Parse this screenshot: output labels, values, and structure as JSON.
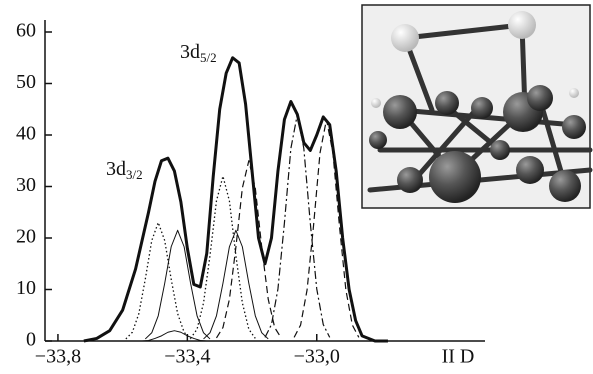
{
  "chart_data": {
    "type": "line",
    "x_label": "II D",
    "xlim": [
      -33.84,
      -32.48
    ],
    "ylim": [
      0,
      62
    ],
    "xticks": [
      {
        "value": -33.8,
        "label": "−33,8"
      },
      {
        "value": -33.4,
        "label": "−33,4"
      },
      {
        "value": -33.0,
        "label": "−33,0"
      }
    ],
    "yticks": [
      0,
      10,
      20,
      30,
      40,
      50,
      60
    ],
    "annotations": [
      {
        "text": "3d",
        "sub": "5/2"
      },
      {
        "text": "3d",
        "sub": "3/2"
      }
    ],
    "series": [
      {
        "color": "#111111",
        "style": "thick",
        "x": [
          -33.72,
          -33.68,
          -33.64,
          -33.6,
          -33.56,
          -33.52,
          -33.5,
          -33.48,
          -33.46,
          -33.44,
          -33.42,
          -33.4,
          -33.38,
          -33.36,
          -33.34,
          -33.32,
          -33.3,
          -33.28,
          -33.26,
          -33.24,
          -33.22,
          -33.2,
          -33.18,
          -33.16,
          -33.14,
          -33.12,
          -33.1,
          -33.08,
          -33.06,
          -33.04,
          -33.02,
          -33.0,
          -32.98,
          -32.96,
          -32.94,
          -32.92,
          -32.9,
          -32.88,
          -32.86,
          -32.82,
          -32.78
        ],
        "values": [
          0,
          0.5,
          2,
          6,
          14,
          25,
          31,
          35,
          35.5,
          33,
          27,
          18,
          11,
          10.5,
          17,
          32,
          45,
          52,
          55,
          54,
          46,
          33,
          20,
          15,
          20,
          33,
          43,
          46.5,
          44,
          38.5,
          37,
          40,
          43.5,
          42,
          33,
          20,
          10,
          4,
          1,
          0,
          0
        ]
      },
      {
        "color": "#111111",
        "style": "dotted",
        "x": [
          -33.59,
          -33.57,
          -33.55,
          -33.53,
          -33.51,
          -33.49,
          -33.47,
          -33.45,
          -33.43,
          -33.41,
          -33.39
        ],
        "values": [
          0.4,
          1.7,
          5.3,
          12,
          19.5,
          23,
          19.5,
          12,
          5.3,
          1.7,
          0.4
        ]
      },
      {
        "color": "#111111",
        "style": "solid",
        "x": [
          -33.53,
          -33.51,
          -33.49,
          -33.47,
          -33.45,
          -33.43,
          -33.41,
          -33.39,
          -33.37,
          -33.35,
          -33.33
        ],
        "values": [
          0.4,
          1.6,
          4.9,
          11.2,
          18.3,
          21.5,
          18.3,
          11.2,
          4.9,
          1.6,
          0.4
        ]
      },
      {
        "color": "#111111",
        "style": "solid",
        "x": [
          -33.54,
          -33.52,
          -33.5,
          -33.48,
          -33.46,
          -33.44,
          -33.42,
          -33.4,
          -33.38,
          -33.36,
          -33.34
        ],
        "values": [
          0,
          0.1,
          0.5,
          1,
          1.7,
          2,
          1.7,
          1,
          0.5,
          0.1,
          0
        ]
      },
      {
        "color": "#111111",
        "style": "dotted",
        "x": [
          -33.39,
          -33.37,
          -33.35,
          -33.33,
          -33.31,
          -33.29,
          -33.27,
          -33.25,
          -33.23,
          -33.21,
          -33.19
        ],
        "values": [
          0.5,
          2.3,
          7.4,
          16.6,
          27.2,
          32,
          27.2,
          16.6,
          7.4,
          2.3,
          0.5
        ]
      },
      {
        "color": "#111111",
        "style": "solid",
        "x": [
          -33.35,
          -33.33,
          -33.31,
          -33.29,
          -33.27,
          -33.25,
          -33.23,
          -33.21,
          -33.19,
          -33.17,
          -33.15
        ],
        "values": [
          0.4,
          1.6,
          4.9,
          11.2,
          18.3,
          21.5,
          18.3,
          11.2,
          4.9,
          1.6,
          0.4
        ]
      },
      {
        "color": "#111111",
        "style": "dashed",
        "x": [
          -33.31,
          -33.29,
          -33.27,
          -33.25,
          -33.23,
          -33.21,
          -33.19,
          -33.17,
          -33.15,
          -33.13,
          -33.11
        ],
        "values": [
          0.6,
          2.6,
          8.1,
          18.2,
          29.7,
          35,
          29.7,
          18.2,
          8.1,
          2.6,
          0.6
        ]
      },
      {
        "color": "#111111",
        "style": "dashdot",
        "x": [
          -33.16,
          -33.14,
          -33.12,
          -33.1,
          -33.08,
          -33.06,
          -33.04,
          -33.02,
          -33.0,
          -32.98,
          -32.96
        ],
        "values": [
          0.7,
          3.2,
          10.1,
          22.9,
          37.4,
          44,
          37.4,
          22.9,
          10.1,
          3.2,
          0.7
        ]
      },
      {
        "color": "#111111",
        "style": "dashed",
        "x": [
          -33.07,
          -33.05,
          -33.03,
          -33.01,
          -32.99,
          -32.97,
          -32.95,
          -32.93,
          -32.91,
          -32.89,
          -32.87
        ],
        "values": [
          0.7,
          3.1,
          9.9,
          22.4,
          36.5,
          43,
          36.5,
          22.4,
          9.9,
          3.1,
          0.7
        ]
      }
    ]
  }
}
